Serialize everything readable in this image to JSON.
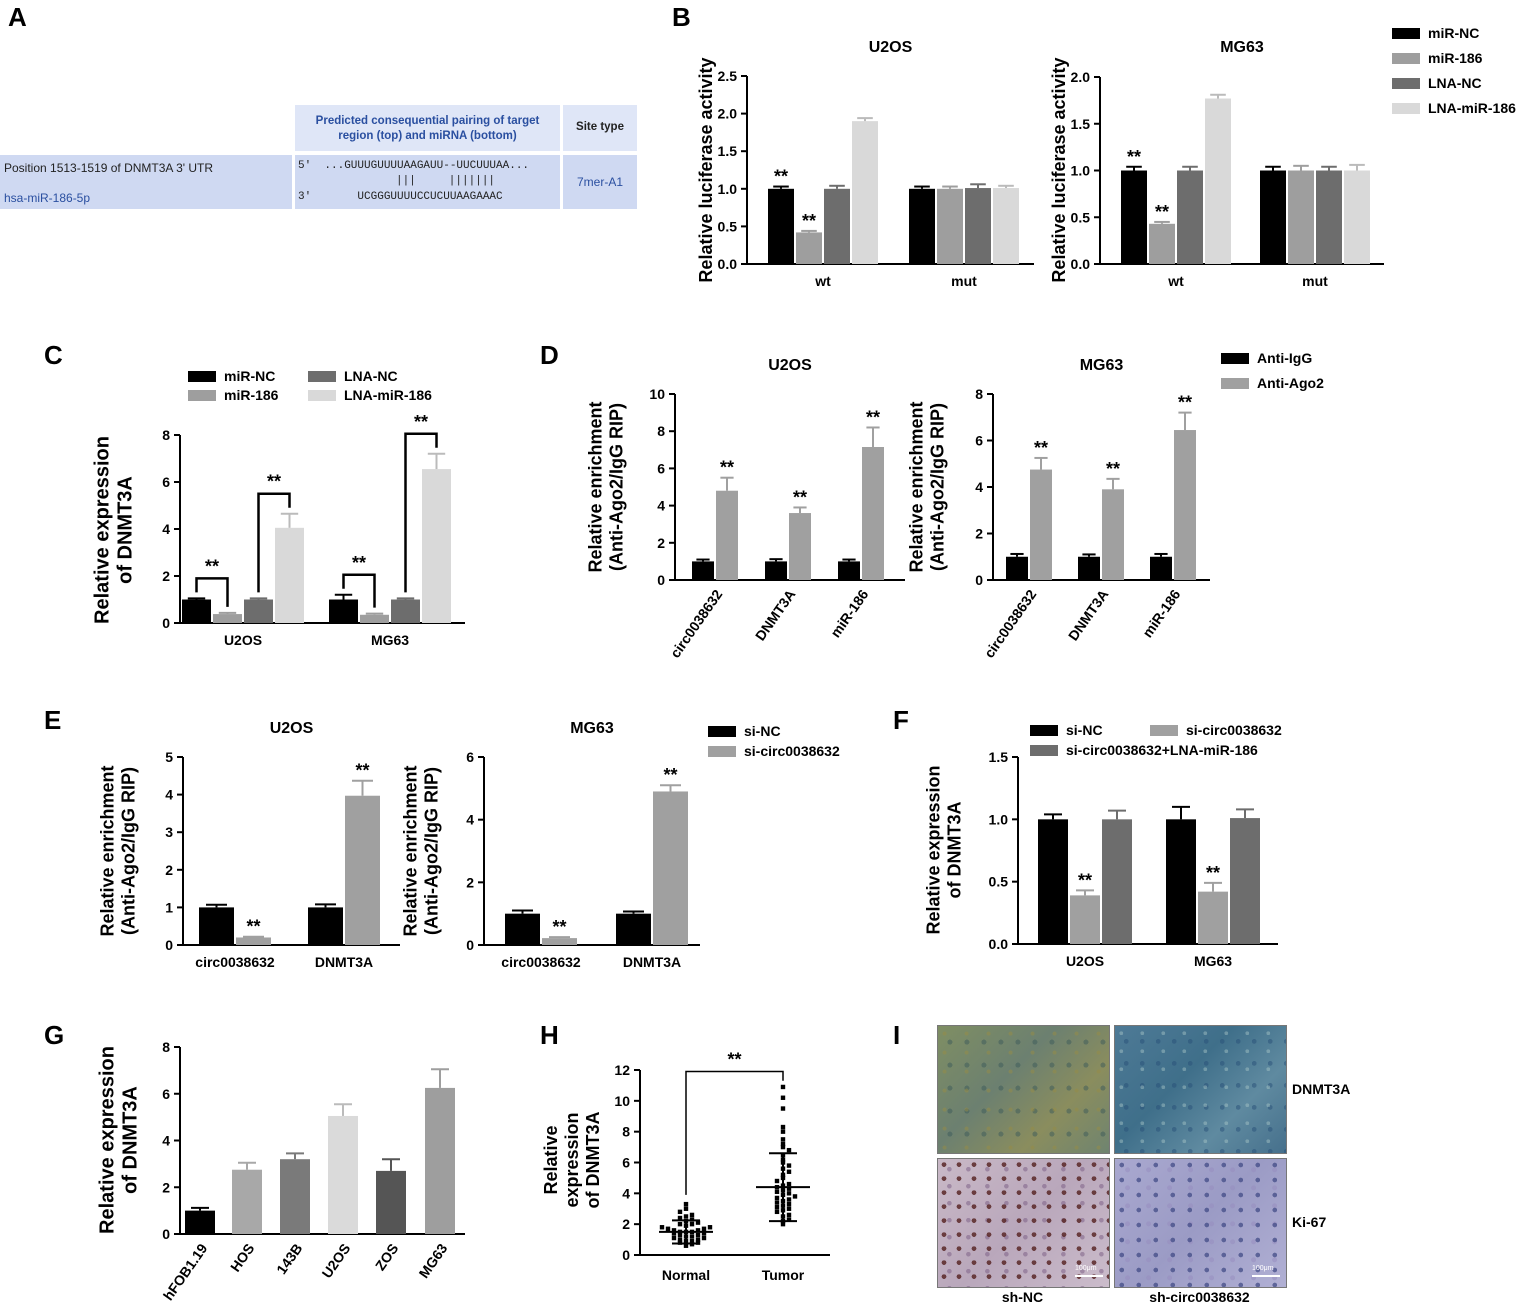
{
  "panels": {
    "A": "A",
    "B": "B",
    "C": "C",
    "D": "D",
    "E": "E",
    "F": "F",
    "G": "G",
    "H": "H",
    "I": "I"
  },
  "panel_a": {
    "header": "Predicted consequential pairing of target region (top) and miRNA (bottom)",
    "header_line1": "Predicted consequential pairing of target",
    "header_line2": "region (top) and miRNA (bottom)",
    "site_type_header": "Site type",
    "row1_label": "Position 1513-1519 of DNMT3A 3' UTR",
    "row2_label": "hsa-miR-186-5p",
    "seq_top": "5'  ...GUUUGUUUUAAGAUU--UUCUUUAA...",
    "pairs": "|||     |||||||",
    "seq_bottom": "3'       UCGGGUUUUCCUCUUAAGAAAC",
    "site_type": "7mer-A1"
  },
  "panel_i": {
    "row_labels": [
      "DNMT3A",
      "Ki-67"
    ],
    "col_labels": [
      "sh-NC",
      "sh-circ0038632"
    ],
    "scale_bar": "100μm"
  },
  "chart_data": [
    {
      "id": "B1",
      "type": "bar",
      "title": "U2OS",
      "ylabel": "Relative luciferase activity",
      "ylim": [
        0,
        2.5
      ],
      "yticks": [
        0.0,
        0.5,
        1.0,
        1.5,
        2.0,
        2.5
      ],
      "ytick_labels": [
        "0.0",
        "0.5",
        "1.0",
        "1.5",
        "2.0",
        "2.5"
      ],
      "categories": [
        "wt",
        "mut"
      ],
      "series": [
        {
          "name": "miR-NC",
          "values": [
            1.0,
            1.0
          ],
          "err": [
            0.03,
            0.03
          ],
          "color": "#000000"
        },
        {
          "name": "miR-186",
          "values": [
            0.42,
            1.0
          ],
          "err": [
            0.02,
            0.03
          ],
          "color": "#9e9e9e"
        },
        {
          "name": "LNA-NC",
          "values": [
            1.0,
            1.01
          ],
          "err": [
            0.04,
            0.05
          ],
          "color": "#6d6d6d"
        },
        {
          "name": "LNA-miR-186",
          "values": [
            1.9,
            1.01
          ],
          "err": [
            0.04,
            0.03
          ],
          "color": "#d9d9d9"
        }
      ],
      "significance": [
        [
          "**",
          "**",
          "",
          ""
        ],
        [
          "",
          "",
          "",
          ""
        ]
      ]
    },
    {
      "id": "B2",
      "type": "bar",
      "title": "MG63",
      "ylabel": "Relative luciferase activity",
      "ylim": [
        0,
        2.0
      ],
      "yticks": [
        0.0,
        0.5,
        1.0,
        1.5,
        2.0
      ],
      "ytick_labels": [
        "0.0",
        "0.5",
        "1.0",
        "1.5",
        "2.0"
      ],
      "categories": [
        "wt",
        "mut"
      ],
      "series": [
        {
          "name": "miR-NC",
          "values": [
            1.0,
            1.0
          ],
          "err": [
            0.04,
            0.04
          ],
          "color": "#000000"
        },
        {
          "name": "miR-186",
          "values": [
            0.43,
            1.0
          ],
          "err": [
            0.02,
            0.05
          ],
          "color": "#9e9e9e"
        },
        {
          "name": "LNA-NC",
          "values": [
            1.0,
            1.0
          ],
          "err": [
            0.04,
            0.04
          ],
          "color": "#6d6d6d"
        },
        {
          "name": "LNA-miR-186",
          "values": [
            1.77,
            1.0
          ],
          "err": [
            0.04,
            0.06
          ],
          "color": "#d9d9d9"
        }
      ],
      "significance": [
        [
          "**",
          "**",
          "",
          ""
        ],
        [
          "",
          "",
          "",
          ""
        ]
      ],
      "legend": [
        "miR-NC",
        "miR-186",
        "LNA-NC",
        "LNA-miR-186"
      ]
    },
    {
      "id": "C",
      "type": "bar",
      "title": "",
      "ylabel": "Relative expression of DNMT3A",
      "ylabel_lines": [
        "Relative expression",
        "of DNMT3A"
      ],
      "ylim": [
        0,
        8
      ],
      "yticks": [
        0,
        2,
        4,
        6,
        8
      ],
      "ytick_labels": [
        "0",
        "2",
        "4",
        "6",
        "8"
      ],
      "categories": [
        "U2OS",
        "MG63"
      ],
      "series": [
        {
          "name": "miR-NC",
          "values": [
            1.0,
            1.0
          ],
          "err": [
            0.05,
            0.2
          ],
          "color": "#000000"
        },
        {
          "name": "miR-186",
          "values": [
            0.38,
            0.35
          ],
          "err": [
            0.05,
            0.05
          ],
          "color": "#9e9e9e"
        },
        {
          "name": "LNA-NC",
          "values": [
            1.0,
            1.0
          ],
          "err": [
            0.05,
            0.05
          ],
          "color": "#6d6d6d"
        },
        {
          "name": "LNA-miR-186",
          "values": [
            4.05,
            6.55
          ],
          "err": [
            0.6,
            0.65
          ],
          "color": "#d9d9d9"
        }
      ],
      "brackets": [
        {
          "cat": 0,
          "a": 0,
          "b": 1,
          "label": "**"
        },
        {
          "cat": 0,
          "a": 2,
          "b": 3,
          "label": "**"
        },
        {
          "cat": 1,
          "a": 0,
          "b": 1,
          "label": "**"
        },
        {
          "cat": 1,
          "a": 2,
          "b": 3,
          "label": "**"
        }
      ],
      "legend": [
        "miR-NC",
        "miR-186",
        "LNA-NC",
        "LNA-miR-186"
      ]
    },
    {
      "id": "D1",
      "type": "bar",
      "title": "U2OS",
      "ylabel_lines": [
        "Relative enrichment",
        "(Anti-Ago2/IgG RIP)"
      ],
      "ylim": [
        0,
        10
      ],
      "yticks": [
        0,
        2,
        4,
        6,
        8,
        10
      ],
      "ytick_labels": [
        "0",
        "2",
        "4",
        "6",
        "8",
        "10"
      ],
      "categories": [
        "circ0038632",
        "DNMT3A",
        "miR-186"
      ],
      "series": [
        {
          "name": "Anti-IgG",
          "values": [
            1.0,
            1.0,
            1.0
          ],
          "err": [
            0.1,
            0.12,
            0.1
          ],
          "color": "#000000"
        },
        {
          "name": "Anti-Ago2",
          "values": [
            4.8,
            3.6,
            7.15
          ],
          "err": [
            0.7,
            0.3,
            1.05
          ],
          "color": "#a0a0a0"
        }
      ],
      "significance": [
        [
          "",
          "**"
        ],
        [
          "",
          "**"
        ],
        [
          "",
          "**"
        ]
      ]
    },
    {
      "id": "D2",
      "type": "bar",
      "title": "MG63",
      "ylabel_lines": [
        "Relative enrichment",
        "(Anti-Ago2/IgG RIP)"
      ],
      "ylim": [
        0,
        8
      ],
      "yticks": [
        0,
        2,
        4,
        6,
        8
      ],
      "ytick_labels": [
        "0",
        "2",
        "4",
        "6",
        "8"
      ],
      "categories": [
        "circ0038632",
        "DNMT3A",
        "miR-186"
      ],
      "series": [
        {
          "name": "Anti-IgG",
          "values": [
            1.0,
            1.0,
            1.0
          ],
          "err": [
            0.12,
            0.1,
            0.12
          ],
          "color": "#000000"
        },
        {
          "name": "Anti-Ago2",
          "values": [
            4.75,
            3.9,
            6.45
          ],
          "err": [
            0.5,
            0.45,
            0.75
          ],
          "color": "#a0a0a0"
        }
      ],
      "significance": [
        [
          "",
          "**"
        ],
        [
          "",
          "**"
        ],
        [
          "",
          "**"
        ]
      ],
      "legend": [
        "Anti-IgG",
        "Anti-Ago2"
      ]
    },
    {
      "id": "E1",
      "type": "bar",
      "title": "U2OS",
      "ylabel_lines": [
        "Relative enrichment",
        "(Anti-Ago2/IgG RIP)"
      ],
      "ylim": [
        0,
        5
      ],
      "yticks": [
        0,
        1,
        2,
        3,
        4,
        5
      ],
      "ytick_labels": [
        "0",
        "1",
        "2",
        "3",
        "4",
        "5"
      ],
      "categories": [
        "circ0038632",
        "DNMT3A"
      ],
      "series": [
        {
          "name": "si-NC",
          "values": [
            1.0,
            1.0
          ],
          "err": [
            0.07,
            0.08
          ],
          "color": "#000000"
        },
        {
          "name": "si-circ0038632",
          "values": [
            0.2,
            3.97
          ],
          "err": [
            0.02,
            0.4
          ],
          "color": "#a0a0a0"
        }
      ],
      "significance": [
        [
          "",
          "**"
        ],
        [
          "",
          "**"
        ]
      ]
    },
    {
      "id": "E2",
      "type": "bar",
      "title": "MG63",
      "ylabel_lines": [
        "Relative enrichment",
        "(Anti-Ago2/IgG RIP)"
      ],
      "ylim": [
        0,
        6
      ],
      "yticks": [
        0,
        2,
        4,
        6
      ],
      "ytick_labels": [
        "0",
        "2",
        "4",
        "6"
      ],
      "categories": [
        "circ0038632",
        "DNMT3A"
      ],
      "series": [
        {
          "name": "si-NC",
          "values": [
            1.0,
            1.0
          ],
          "err": [
            0.1,
            0.07
          ],
          "color": "#000000"
        },
        {
          "name": "si-circ0038632",
          "values": [
            0.22,
            4.9
          ],
          "err": [
            0.03,
            0.2
          ],
          "color": "#a0a0a0"
        }
      ],
      "significance": [
        [
          "",
          "**"
        ],
        [
          "",
          "**"
        ]
      ],
      "legend": [
        "si-NC",
        "si-circ0038632"
      ]
    },
    {
      "id": "F",
      "type": "bar",
      "title": "",
      "ylabel_lines": [
        "Relative expression",
        "of DNMT3A"
      ],
      "ylim": [
        0,
        1.5
      ],
      "yticks": [
        0.0,
        0.5,
        1.0,
        1.5
      ],
      "ytick_labels": [
        "0.0",
        "0.5",
        "1.0",
        "1.5"
      ],
      "categories": [
        "U2OS",
        "MG63"
      ],
      "series": [
        {
          "name": "si-NC",
          "values": [
            1.0,
            1.0
          ],
          "err": [
            0.04,
            0.1
          ],
          "color": "#000000"
        },
        {
          "name": "si-circ0038632",
          "values": [
            0.39,
            0.42
          ],
          "err": [
            0.04,
            0.07
          ],
          "color": "#a0a0a0"
        },
        {
          "name": "si-circ0038632+LNA-miR-186",
          "values": [
            1.0,
            1.01
          ],
          "err": [
            0.07,
            0.07
          ],
          "color": "#6d6d6d"
        }
      ],
      "significance": [
        [
          "",
          "**",
          ""
        ],
        [
          "",
          "**",
          ""
        ]
      ],
      "legend": [
        "si-NC",
        "si-circ0038632",
        "si-circ0038632+LNA-miR-186"
      ]
    },
    {
      "id": "G",
      "type": "bar",
      "title": "",
      "ylabel_lines": [
        "Relative expression",
        "of DNMT3A"
      ],
      "ylim": [
        0,
        8
      ],
      "yticks": [
        0,
        2,
        4,
        6,
        8
      ],
      "ytick_labels": [
        "0",
        "2",
        "4",
        "6",
        "8"
      ],
      "categories": [
        "hFOB1.19",
        "HOS",
        "143B",
        "U2OS",
        "ZOS",
        "MG63"
      ],
      "values": [
        1.0,
        2.75,
        3.2,
        5.05,
        2.7,
        6.25
      ],
      "err": [
        0.12,
        0.3,
        0.25,
        0.5,
        0.5,
        0.8
      ],
      "colors": [
        "#000000",
        "#a8a8a8",
        "#7a7a7a",
        "#dadada",
        "#555555",
        "#9e9e9e"
      ]
    },
    {
      "id": "H",
      "type": "scatter",
      "title": "",
      "ylabel_lines": [
        "Relative",
        "expression",
        "of DNMT3A"
      ],
      "ylim": [
        0,
        12
      ],
      "yticks": [
        0,
        2,
        4,
        6,
        8,
        10,
        12
      ],
      "ytick_labels": [
        "0",
        "2",
        "4",
        "6",
        "8",
        "10",
        "12"
      ],
      "categories": [
        "Normal",
        "Tumor"
      ],
      "means": [
        1.5,
        4.4
      ],
      "sd": [
        0.75,
        2.2
      ],
      "significance": "**",
      "groups": [
        {
          "name": "Normal",
          "values": [
            0.6,
            0.7,
            0.8,
            0.8,
            0.9,
            0.9,
            1.0,
            1.0,
            1.1,
            1.1,
            1.2,
            1.2,
            1.3,
            1.3,
            1.4,
            1.4,
            1.5,
            1.5,
            1.5,
            1.6,
            1.6,
            1.7,
            1.7,
            1.8,
            1.8,
            1.9,
            2.0,
            2.0,
            2.1,
            2.2,
            2.3,
            2.4,
            2.5,
            2.6,
            2.8,
            3.0,
            3.3
          ]
        },
        {
          "name": "Tumor",
          "values": [
            2.0,
            2.2,
            2.3,
            2.5,
            2.6,
            2.8,
            2.9,
            3.0,
            3.1,
            3.2,
            3.3,
            3.4,
            3.5,
            3.6,
            3.7,
            3.8,
            3.9,
            4.0,
            4.1,
            4.2,
            4.3,
            4.4,
            4.5,
            4.6,
            4.8,
            5.0,
            5.2,
            5.4,
            5.6,
            5.8,
            6.0,
            6.2,
            6.5,
            6.8,
            7.0,
            7.2,
            7.5,
            8.0,
            8.3,
            9.5,
            10.2,
            10.9
          ]
        }
      ]
    }
  ]
}
